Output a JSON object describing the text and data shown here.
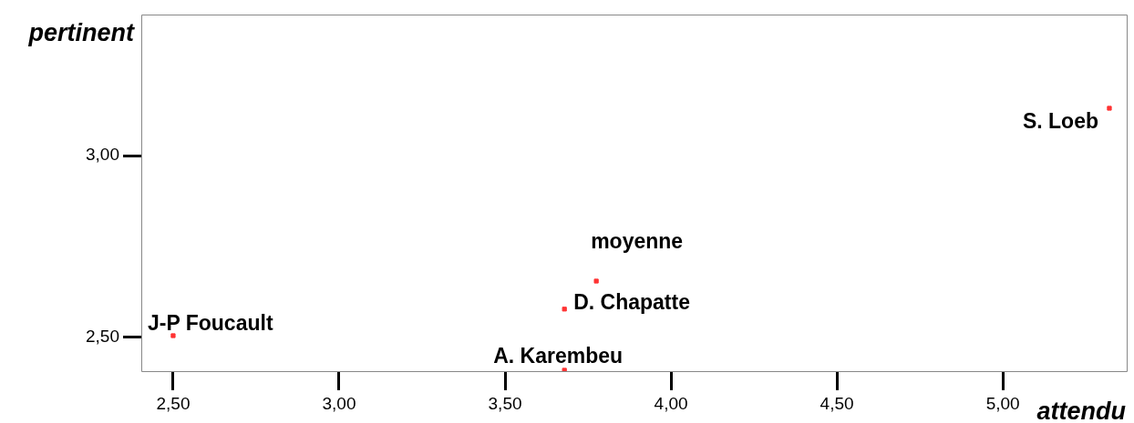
{
  "chart_data": {
    "type": "scatter",
    "xlabel": "attendu",
    "ylabel": "pertinent",
    "marker": "square",
    "grid": false,
    "xlim": [
      2.404,
      5.376
    ],
    "ylim": [
      2.405,
      3.3875
    ],
    "xticks": [
      {
        "value": 2.5,
        "label": "2,50"
      },
      {
        "value": 3,
        "label": "3,00"
      },
      {
        "value": 3.5,
        "label": "3,50"
      },
      {
        "value": 4,
        "label": "4,00"
      },
      {
        "value": 4.5,
        "label": "4,50"
      },
      {
        "value": 5,
        "label": "5,00"
      }
    ],
    "yticks": [
      {
        "value": 2.5,
        "label": "2,50"
      },
      {
        "value": 3,
        "label": "3,00"
      }
    ],
    "series": [
      {
        "name": "J-P Foucault",
        "color": "#ff3333",
        "x": [
          2.5
        ],
        "values": [
          2.505
        ]
      },
      {
        "name": "A. Karembeu",
        "color": "#ff3333",
        "x": [
          3.679
        ],
        "values": [
          2.41
        ]
      },
      {
        "name": "D. Chapatte",
        "color": "#ff3333",
        "x": [
          3.679
        ],
        "values": [
          2.578
        ]
      },
      {
        "name": "moyenne",
        "color": "#ff3333",
        "x": [
          3.775
        ],
        "values": [
          2.655
        ]
      },
      {
        "name": "S. Loeb",
        "color": "#ff3333",
        "x": [
          5.321
        ],
        "values": [
          3.13
        ]
      }
    ]
  }
}
